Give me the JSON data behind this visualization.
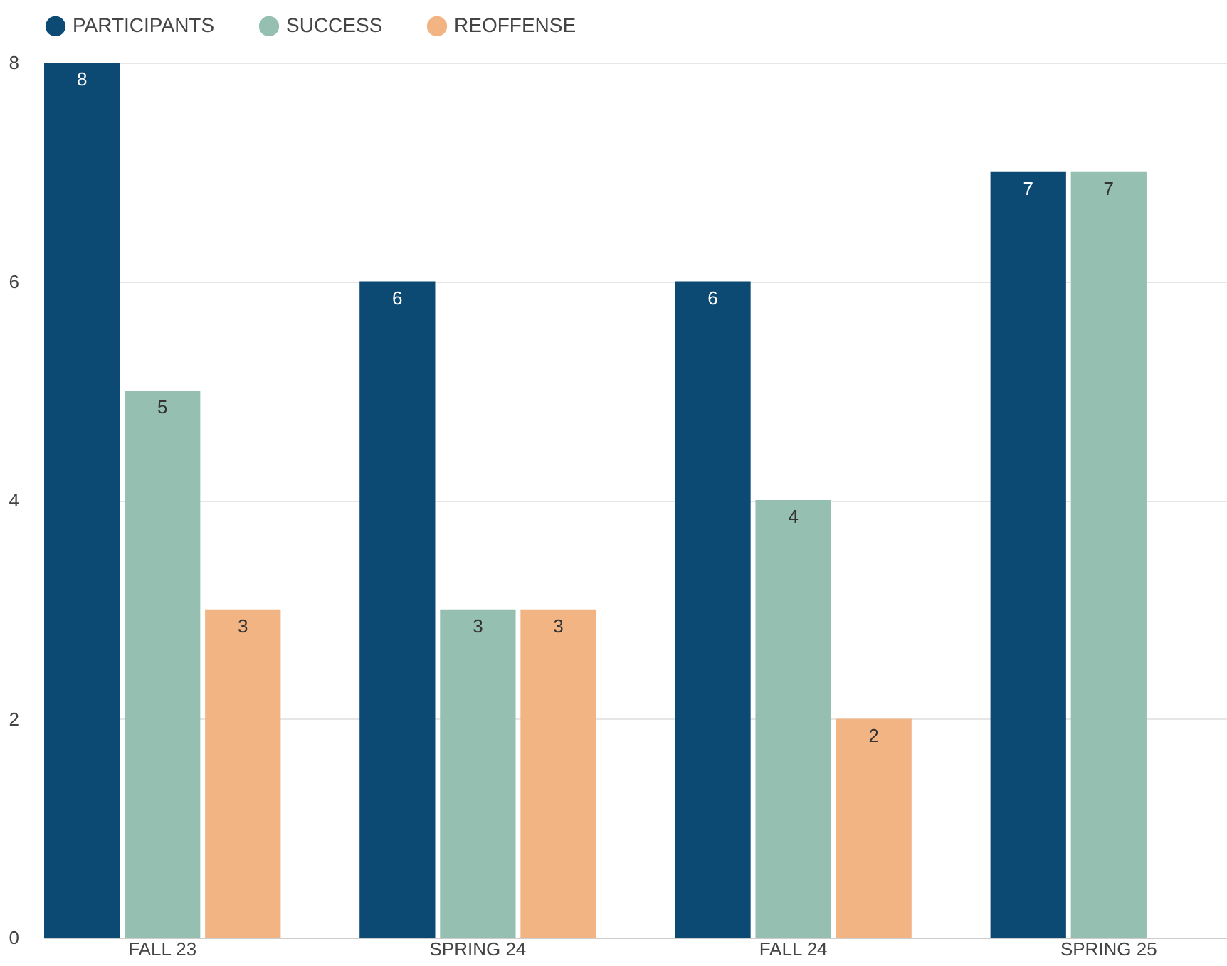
{
  "chart_data": {
    "type": "bar",
    "categories": [
      "FALL 23",
      "SPRING 24",
      "FALL 24",
      "SPRING 25"
    ],
    "series": [
      {
        "name": "PARTICIPANTS",
        "color": "#0d4a73",
        "values": [
          8,
          6,
          6,
          7
        ]
      },
      {
        "name": "SUCCESS",
        "color": "#95bfb1",
        "values": [
          5,
          3,
          4,
          7
        ]
      },
      {
        "name": "REOFFENSE",
        "color": "#f2b483",
        "values": [
          3,
          3,
          2,
          null
        ]
      }
    ],
    "ylim": [
      0,
      8
    ],
    "yticks": [
      0,
      2,
      4,
      6,
      8
    ],
    "grid": "y",
    "legend": "top",
    "data_labels": true
  }
}
